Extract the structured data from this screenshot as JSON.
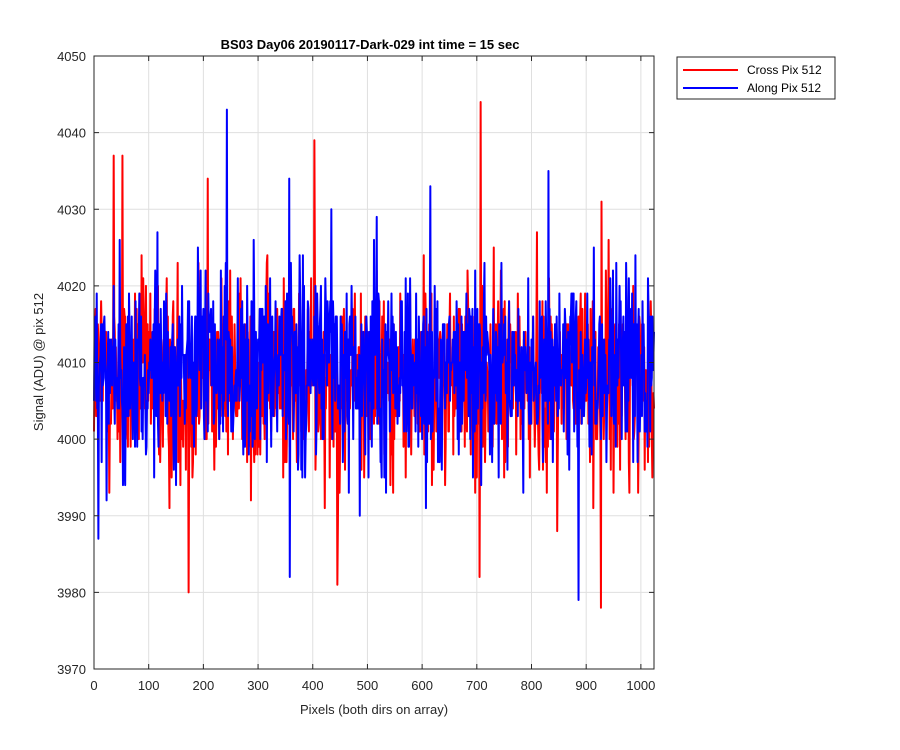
{
  "chart_data": {
    "type": "line",
    "title": "BS03 Day06 20190117-Dark-029 int time = 15 sec",
    "xlabel": "Pixels (both dirs on array)",
    "ylabel": "Signal (ADU) @ pix 512",
    "xlim": [
      0,
      1024
    ],
    "ylim": [
      3970,
      4050
    ],
    "xticks": [
      0,
      100,
      200,
      300,
      400,
      500,
      600,
      700,
      800,
      900,
      1000
    ],
    "yticks": [
      3970,
      3980,
      3990,
      4000,
      4010,
      4020,
      4030,
      4040,
      4050
    ],
    "grid": true,
    "legend_location": "outside top-right",
    "series": [
      {
        "name": "Cross Pix 512",
        "color": "#ff0000",
        "x_start": 0,
        "x_step": 1,
        "baseline": 4008,
        "spread": 6.5,
        "min": 3978,
        "max": 4044,
        "spikes": [
          [
            36,
            4037
          ],
          [
            52,
            4037
          ],
          [
            173,
            3980
          ],
          [
            208,
            4034
          ],
          [
            403,
            4039
          ],
          [
            445,
            3981
          ],
          [
            707,
            4044
          ],
          [
            705,
            3982
          ],
          [
            927,
            3978
          ],
          [
            928,
            4031
          ]
        ]
      },
      {
        "name": "Along Pix 512",
        "color": "#0000ff",
        "x_start": 0,
        "x_step": 1,
        "baseline": 4009,
        "spread": 6.5,
        "min": 3979,
        "max": 4043,
        "spikes": [
          [
            8,
            3987
          ],
          [
            243,
            4043
          ],
          [
            357,
            4034
          ],
          [
            358,
            3982
          ],
          [
            615,
            4033
          ],
          [
            831,
            4035
          ],
          [
            886,
            3979
          ]
        ]
      }
    ]
  }
}
